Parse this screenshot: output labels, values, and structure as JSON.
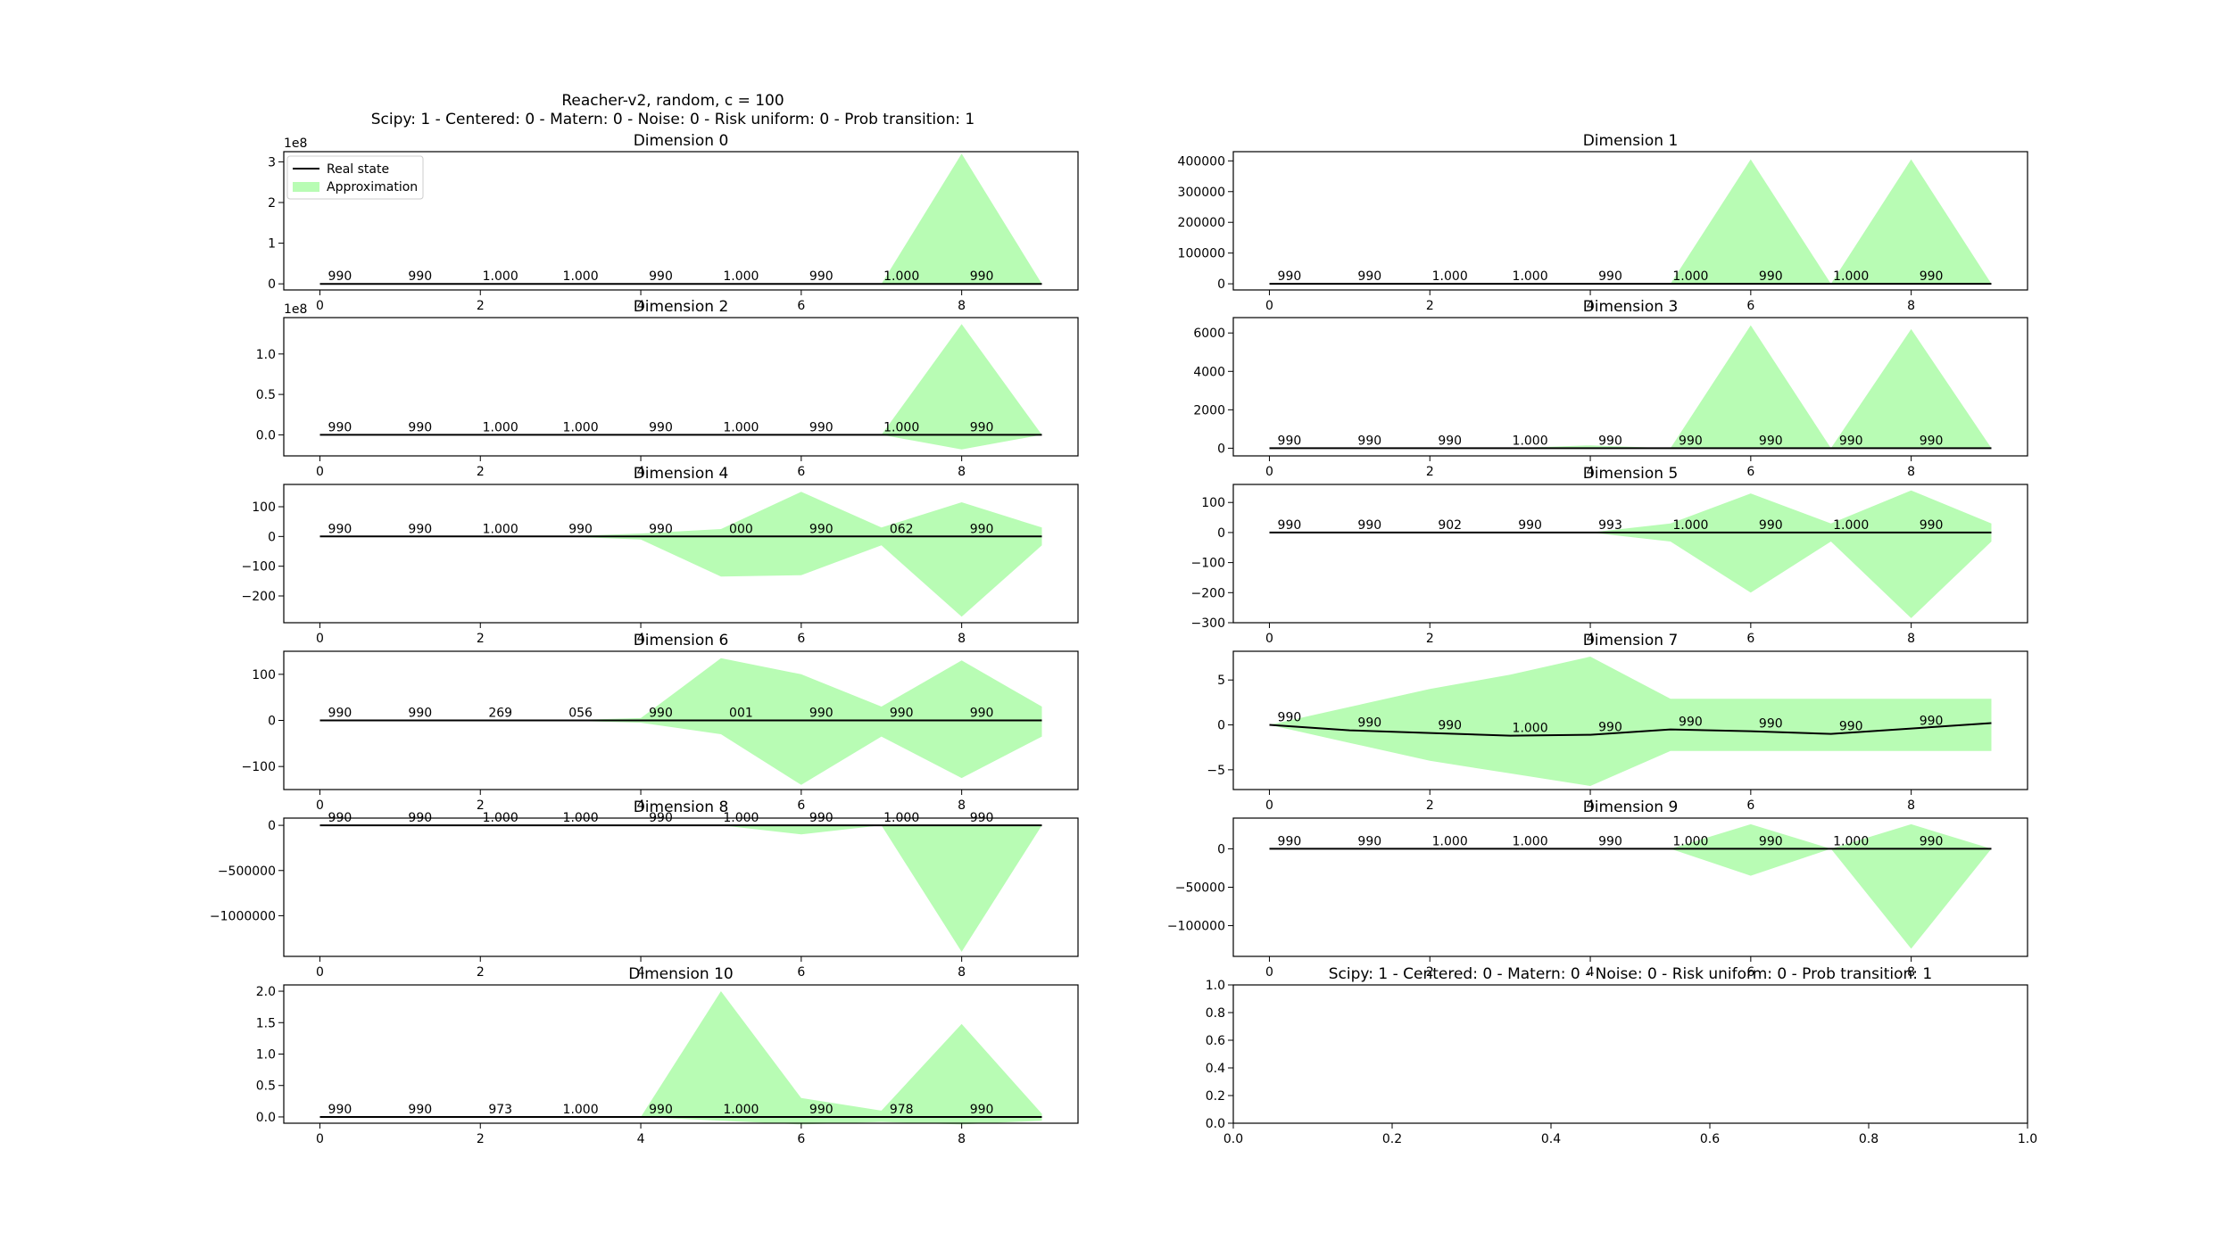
{
  "figure": {
    "title_line1": "Reacher-v2, random, c = 100",
    "title_line2": "Scipy: 1 - Centered: 0 - Matern: 0 - Noise: 0 - Risk uniform: 0 - Prob transition: 1",
    "empty_panel_title": "Scipy: 1 - Centered: 0 - Matern: 0 - Noise: 0 - Risk uniform: 0 - Prob transition: 1",
    "fill_color": "#b8fcb4",
    "line_color": "#000000"
  },
  "legend": {
    "real_state": "Real state",
    "approximation": "Approximation"
  },
  "chart_data": [
    {
      "type": "area",
      "title": "Dimension 0",
      "offset_text": "1e8",
      "x": [
        0,
        1,
        2,
        3,
        4,
        5,
        6,
        7,
        8,
        9
      ],
      "xticks": [
        0,
        2,
        4,
        6,
        8
      ],
      "xlim": [
        -0.45,
        9.45
      ],
      "ylim": [
        -0.15,
        3.25
      ],
      "yticks": [
        0,
        1,
        2,
        3
      ],
      "ytick_labels": [
        "0",
        "1",
        "2",
        "3"
      ],
      "real_state": [
        0,
        0,
        0,
        0,
        0,
        0,
        0,
        0,
        0,
        0
      ],
      "upper": [
        0,
        0,
        0,
        0,
        0,
        0,
        0,
        0,
        3.2,
        0
      ],
      "lower": [
        0,
        0,
        0,
        0,
        0,
        0,
        0,
        0,
        0,
        0
      ],
      "annotations": [
        "990",
        "990",
        "1.000",
        "1.000",
        "990",
        "1.000",
        "990",
        "1.000",
        "990"
      ]
    },
    {
      "type": "area",
      "title": "Dimension 1",
      "x": [
        0,
        1,
        2,
        3,
        4,
        5,
        6,
        7,
        8,
        9
      ],
      "xticks": [
        0,
        2,
        4,
        6,
        8
      ],
      "xlim": [
        -0.45,
        9.45
      ],
      "ylim": [
        -20000,
        430000
      ],
      "yticks": [
        0,
        100000,
        200000,
        300000,
        400000
      ],
      "ytick_labels": [
        "0",
        "100000",
        "200000",
        "300000",
        "400000"
      ],
      "real_state": [
        0,
        0,
        0,
        0,
        0,
        0,
        0,
        0,
        0,
        0
      ],
      "upper": [
        0,
        0,
        0,
        0,
        0,
        0,
        405000,
        0,
        405000,
        0
      ],
      "lower": [
        0,
        0,
        0,
        0,
        0,
        0,
        0,
        0,
        0,
        0
      ],
      "annotations": [
        "990",
        "990",
        "1.000",
        "1.000",
        "990",
        "1.000",
        "990",
        "1.000",
        "990"
      ]
    },
    {
      "type": "area",
      "title": "Dimension 2",
      "offset_text": "1e8",
      "x": [
        0,
        1,
        2,
        3,
        4,
        5,
        6,
        7,
        8,
        9
      ],
      "xticks": [
        0,
        2,
        4,
        6,
        8
      ],
      "xlim": [
        -0.45,
        9.45
      ],
      "ylim": [
        -0.26,
        1.45
      ],
      "yticks": [
        0,
        0.5,
        1.0
      ],
      "ytick_labels": [
        "0.0",
        "0.5",
        "1.0"
      ],
      "real_state": [
        0,
        0,
        0,
        0,
        0,
        0,
        0,
        0,
        0,
        0
      ],
      "upper": [
        0,
        0,
        0,
        0,
        0,
        0,
        0,
        0,
        1.37,
        0
      ],
      "lower": [
        0,
        0,
        0,
        0,
        0,
        0,
        0,
        0,
        -0.18,
        0
      ],
      "annotations": [
        "990",
        "990",
        "1.000",
        "1.000",
        "990",
        "1.000",
        "990",
        "1.000",
        "990"
      ]
    },
    {
      "type": "area",
      "title": "Dimension 3",
      "x": [
        0,
        1,
        2,
        3,
        4,
        5,
        6,
        7,
        8,
        9
      ],
      "xticks": [
        0,
        2,
        4,
        6,
        8
      ],
      "xlim": [
        -0.45,
        9.45
      ],
      "ylim": [
        -400,
        6800
      ],
      "yticks": [
        0,
        2000,
        4000,
        6000
      ],
      "ytick_labels": [
        "0",
        "2000",
        "4000",
        "6000"
      ],
      "real_state": [
        0,
        0,
        0,
        0,
        0,
        0,
        0,
        0,
        0,
        0
      ],
      "upper": [
        0,
        0,
        0,
        0,
        150,
        0,
        6400,
        0,
        6200,
        0
      ],
      "lower": [
        0,
        0,
        0,
        0,
        0,
        0,
        0,
        0,
        0,
        0
      ],
      "annotations": [
        "990",
        "990",
        "990",
        "1.000",
        "990",
        "990",
        "990",
        "990",
        "990"
      ]
    },
    {
      "type": "area",
      "title": "Dimension 4",
      "x": [
        0,
        1,
        2,
        3,
        4,
        5,
        6,
        7,
        8,
        9
      ],
      "xticks": [
        0,
        2,
        4,
        6,
        8
      ],
      "xlim": [
        -0.45,
        9.45
      ],
      "ylim": [
        -290,
        175
      ],
      "yticks": [
        -200,
        -100,
        0,
        100
      ],
      "ytick_labels": [
        "−200",
        "−100",
        "0",
        "100"
      ],
      "real_state": [
        0,
        0,
        0,
        0,
        0,
        0,
        0,
        0,
        0,
        0
      ],
      "upper": [
        0,
        0,
        0,
        0,
        10,
        25,
        150,
        30,
        115,
        30
      ],
      "lower": [
        0,
        0,
        0,
        0,
        -10,
        -135,
        -130,
        -30,
        -270,
        -30
      ],
      "annotations": [
        "990",
        "990",
        "1.000",
        "990",
        "990",
        "000",
        "990",
        "062",
        "990"
      ]
    },
    {
      "type": "area",
      "title": "Dimension 5",
      "x": [
        0,
        1,
        2,
        3,
        4,
        5,
        6,
        7,
        8,
        9
      ],
      "xticks": [
        0,
        2,
        4,
        6,
        8
      ],
      "xlim": [
        -0.45,
        9.45
      ],
      "ylim": [
        -300,
        160
      ],
      "yticks": [
        -300,
        -200,
        -100,
        0,
        100
      ],
      "ytick_labels": [
        "−300",
        "−200",
        "−100",
        "0",
        "100"
      ],
      "real_state": [
        0,
        0,
        0,
        0,
        0,
        0,
        0,
        0,
        0,
        0
      ],
      "upper": [
        0,
        0,
        0,
        0,
        0,
        30,
        130,
        30,
        140,
        30
      ],
      "lower": [
        0,
        0,
        0,
        0,
        0,
        -30,
        -200,
        -30,
        -285,
        -30
      ],
      "annotations": [
        "990",
        "990",
        "902",
        "990",
        "993",
        "1.000",
        "990",
        "1.000",
        "990"
      ]
    },
    {
      "type": "area",
      "title": "Dimension 6",
      "x": [
        0,
        1,
        2,
        3,
        4,
        5,
        6,
        7,
        8,
        9
      ],
      "xticks": [
        0,
        2,
        4,
        6,
        8
      ],
      "xlim": [
        -0.45,
        9.45
      ],
      "ylim": [
        -150,
        150
      ],
      "yticks": [
        -100,
        0,
        100
      ],
      "ytick_labels": [
        "−100",
        "0",
        "100"
      ],
      "real_state": [
        0,
        0,
        0,
        0,
        0,
        0,
        0,
        0,
        0,
        0
      ],
      "upper": [
        0,
        0,
        0,
        0,
        5,
        135,
        100,
        30,
        130,
        30
      ],
      "lower": [
        0,
        0,
        0,
        0,
        -5,
        -30,
        -140,
        -35,
        -125,
        -35
      ],
      "annotations": [
        "990",
        "990",
        "269",
        "056",
        "990",
        "001",
        "990",
        "990",
        "990"
      ]
    },
    {
      "type": "area",
      "title": "Dimension 7",
      "x": [
        0,
        1,
        2,
        3,
        4,
        5,
        6,
        7,
        8,
        9
      ],
      "xticks": [
        0,
        2,
        4,
        6,
        8
      ],
      "xlim": [
        -0.45,
        9.45
      ],
      "ylim": [
        -7.2,
        8.2
      ],
      "yticks": [
        -5,
        0,
        5
      ],
      "ytick_labels": [
        "−5",
        "0",
        "5"
      ],
      "real_state": [
        0,
        -0.6,
        -0.9,
        -1.2,
        -1.1,
        -0.5,
        -0.7,
        -1.0,
        -0.4,
        0.2
      ],
      "upper": [
        0,
        2.0,
        4.0,
        5.6,
        7.6,
        2.9,
        2.9,
        2.9,
        2.9,
        2.9
      ],
      "lower": [
        0,
        -2.0,
        -4.0,
        -5.4,
        -6.8,
        -2.9,
        -2.9,
        -2.9,
        -2.9,
        -2.9
      ],
      "annotations": [
        "990",
        "990",
        "990",
        "1.000",
        "990",
        "990",
        "990",
        "990",
        "990"
      ]
    },
    {
      "type": "area",
      "title": "Dimension 8",
      "x": [
        0,
        1,
        2,
        3,
        4,
        5,
        6,
        7,
        8,
        9
      ],
      "xticks": [
        0,
        2,
        4,
        6,
        8
      ],
      "xlim": [
        -0.45,
        9.45
      ],
      "ylim": [
        -1450000,
        80000
      ],
      "yticks": [
        -1000000,
        -500000,
        0
      ],
      "ytick_labels": [
        "−1000000",
        "−500000",
        "0"
      ],
      "real_state": [
        0,
        0,
        0,
        0,
        0,
        0,
        0,
        0,
        0,
        0
      ],
      "upper": [
        0,
        0,
        0,
        0,
        0,
        0,
        0,
        0,
        0,
        0
      ],
      "lower": [
        0,
        0,
        0,
        0,
        0,
        0,
        -100000,
        0,
        -1400000,
        0
      ],
      "annotations": [
        "990",
        "990",
        "1.000",
        "1.000",
        "990",
        "1.000",
        "990",
        "1.000",
        "990"
      ]
    },
    {
      "type": "area",
      "title": "Dimension 9",
      "x": [
        0,
        1,
        2,
        3,
        4,
        5,
        6,
        7,
        8,
        9
      ],
      "xticks": [
        0,
        2,
        4,
        6,
        8
      ],
      "xlim": [
        -0.45,
        9.45
      ],
      "ylim": [
        -140000,
        40000
      ],
      "yticks": [
        -100000,
        -50000,
        0
      ],
      "ytick_labels": [
        "−100000",
        "−50000",
        "0"
      ],
      "real_state": [
        0,
        0,
        0,
        0,
        0,
        0,
        0,
        0,
        0,
        0
      ],
      "upper": [
        0,
        0,
        0,
        0,
        0,
        0,
        32000,
        0,
        32000,
        0
      ],
      "lower": [
        0,
        0,
        0,
        0,
        0,
        0,
        -35000,
        0,
        -130000,
        0
      ],
      "annotations": [
        "990",
        "990",
        "1.000",
        "1.000",
        "990",
        "1.000",
        "990",
        "1.000",
        "990"
      ]
    },
    {
      "type": "area",
      "title": "Dimension 10",
      "x": [
        0,
        1,
        2,
        3,
        4,
        5,
        6,
        7,
        8,
        9
      ],
      "xticks": [
        0,
        2,
        4,
        6,
        8
      ],
      "xlim": [
        -0.45,
        9.45
      ],
      "ylim": [
        -0.1,
        2.1
      ],
      "yticks": [
        0,
        0.5,
        1.0,
        1.5,
        2.0
      ],
      "ytick_labels": [
        "0.0",
        "0.5",
        "1.0",
        "1.5",
        "2.0"
      ],
      "real_state": [
        0,
        0,
        0,
        0,
        0,
        0,
        0,
        0,
        0,
        0
      ],
      "upper": [
        0,
        0,
        0,
        0,
        0,
        2.0,
        0.3,
        0.1,
        1.48,
        0.05
      ],
      "lower": [
        0,
        0,
        0,
        0,
        0,
        -0.06,
        -0.12,
        -0.08,
        -0.12,
        -0.06
      ],
      "annotations": [
        "990",
        "990",
        "973",
        "1.000",
        "990",
        "1.000",
        "990",
        "978",
        "990"
      ]
    },
    {
      "type": "line",
      "title": "",
      "empty": true,
      "xlim": [
        0,
        1
      ],
      "ylim": [
        0,
        1
      ],
      "xticks": [
        0,
        0.2,
        0.4,
        0.6,
        0.8,
        1.0
      ],
      "xtick_labels": [
        "0.0",
        "0.2",
        "0.4",
        "0.6",
        "0.8",
        "1.0"
      ],
      "yticks": [
        0,
        0.2,
        0.4,
        0.6,
        0.8,
        1.0
      ],
      "ytick_labels": [
        "0.0",
        "0.2",
        "0.4",
        "0.6",
        "0.8",
        "1.0"
      ]
    }
  ]
}
